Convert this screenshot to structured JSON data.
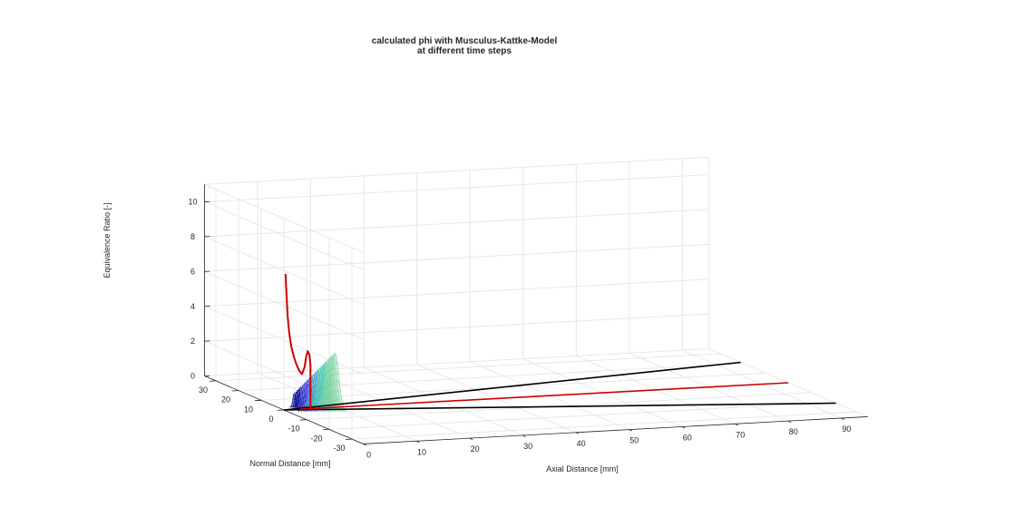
{
  "chart_data": {
    "type": "3d-line-surface",
    "title": "calculated phi with Musculus-Kattke-Model",
    "subtitle": "at different time steps",
    "xlabel": "Axial Distance [mm]",
    "ylabel": "Normal Distance [mm]",
    "zlabel": "Equivalence Ratio [-]",
    "xlim": [
      0,
      95
    ],
    "ylim": [
      -35,
      35
    ],
    "zlim": [
      0,
      11
    ],
    "x_ticks": [
      "0",
      "10",
      "20",
      "30",
      "40",
      "50",
      "60",
      "70",
      "80",
      "90"
    ],
    "y_ticks": [
      "-30",
      "-20",
      "-10",
      "0",
      "10",
      "20",
      "30"
    ],
    "z_ticks": [
      "0",
      "2",
      "4",
      "6",
      "8",
      "10"
    ],
    "grid": true,
    "series": [
      {
        "kind": "spray-boundary-line",
        "color": "#000000",
        "points": [
          [
            0,
            0,
            0
          ],
          [
            95,
            -21,
            0
          ]
        ]
      },
      {
        "kind": "spray-boundary-line",
        "color": "#000000",
        "points": [
          [
            0,
            0,
            0
          ],
          [
            95,
            21,
            0
          ]
        ]
      },
      {
        "kind": "spray-axis-line",
        "color": "#cc0000",
        "points": [
          [
            3,
            0,
            0
          ],
          [
            95,
            0,
            0
          ]
        ]
      },
      {
        "kind": "centerline-phi",
        "color": "#cc0000",
        "points": [
          [
            0.3,
            0,
            7.8
          ],
          [
            0.5,
            0,
            6.6
          ],
          [
            0.7,
            0,
            5.4
          ],
          [
            1.0,
            0,
            4.4
          ],
          [
            1.4,
            0,
            3.6
          ],
          [
            1.9,
            0,
            3.0
          ],
          [
            2.4,
            0,
            2.55
          ],
          [
            2.9,
            0,
            2.2
          ],
          [
            3.4,
            0,
            2.0
          ],
          [
            3.9,
            0,
            2.4
          ],
          [
            4.2,
            0,
            3.0
          ],
          [
            4.5,
            0,
            3.3
          ],
          [
            4.8,
            0,
            3.1
          ],
          [
            5.0,
            0,
            2.5
          ],
          [
            5.0,
            0,
            0
          ]
        ]
      },
      {
        "kind": "radial-profiles",
        "colormap": [
          "#00008b",
          "#3a3ad8",
          "#4aa0c8",
          "#48c8b0",
          "#7fd4a0"
        ],
        "x_positions": [
          2.0,
          2.4,
          2.8,
          3.2,
          3.6,
          4.0,
          4.4,
          4.8,
          5.2,
          5.6,
          6.0,
          6.4,
          6.8,
          7.2,
          7.6,
          8.0,
          8.4,
          8.8,
          9.2,
          9.6
        ]
      }
    ]
  },
  "colors": {
    "background": "#ffffff",
    "grid": "#e3e3e3",
    "axis": "#262626",
    "black_line": "#000000",
    "red_line": "#cc0000"
  }
}
